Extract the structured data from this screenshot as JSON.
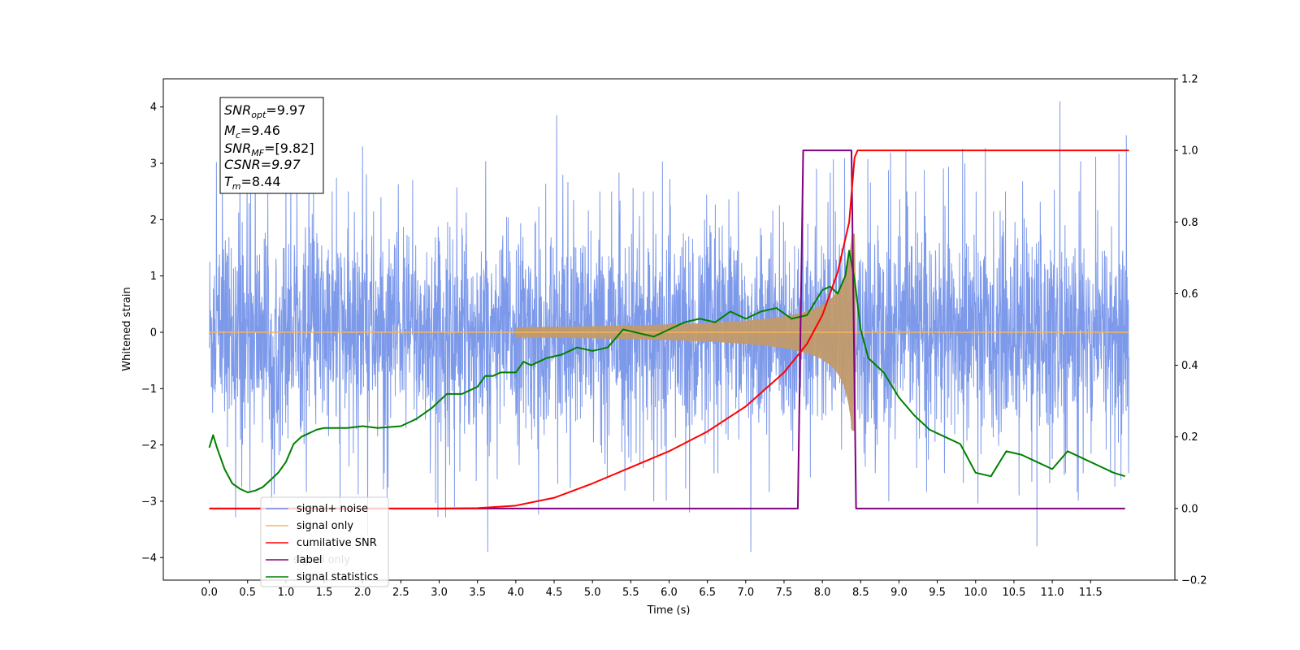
{
  "chart_data": {
    "type": "line",
    "xlabel": "Time (s)",
    "ylabel_left": "Whitened strain",
    "xlim": [
      -0.6,
      12.6
    ],
    "ylim_left": [
      -4.4,
      4.5
    ],
    "ylim_right": [
      -0.2,
      1.2
    ],
    "x_ticks": [
      "0.0",
      "0.5",
      "1.0",
      "1.5",
      "2.0",
      "2.5",
      "3.0",
      "3.5",
      "4.0",
      "4.5",
      "5.0",
      "5.5",
      "6.0",
      "6.5",
      "7.0",
      "7.5",
      "8.0",
      "8.5",
      "9.0",
      "9.5",
      "10.0",
      "10.5",
      "11.0",
      "11.5"
    ],
    "y_left_ticks": [
      "−4",
      "−3",
      "−2",
      "−1",
      "0",
      "1",
      "2",
      "3",
      "4"
    ],
    "y_right_ticks": [
      "−0.2",
      "0.0",
      "0.2",
      "0.4",
      "0.6",
      "0.8",
      "1.0",
      "1.2"
    ],
    "grid": false,
    "legend_position": "lower-left",
    "annotation": {
      "snr_opt": "=9.97",
      "mc": "=9.46",
      "snr_mf": "=[9.82]",
      "csnr": "CSNR=9.97",
      "tm": "=8.44"
    },
    "series": [
      {
        "name": "signal+ noise",
        "color": "#6f8ee8",
        "axis": "left",
        "description_stats": {
          "x_start": 0.0,
          "x_end": 12.0,
          "typical_range": [
            -2.0,
            2.0
          ],
          "max": 4.1,
          "min": -3.9
        }
      },
      {
        "name": "signal only",
        "color": "#f4b55e",
        "axis": "left",
        "chirp": {
          "x_start": 4.0,
          "merger": 8.42,
          "peak_amplitude": 1.75
        }
      },
      {
        "name": "cumilative SNR",
        "color": "#ff0000",
        "axis": "right",
        "x": [
          0.0,
          3.0,
          3.5,
          4.0,
          4.5,
          5.0,
          5.5,
          6.0,
          6.5,
          7.0,
          7.5,
          7.8,
          8.0,
          8.2,
          8.35,
          8.42,
          8.46,
          12.0
        ],
        "y": [
          0.0,
          0.0,
          0.001,
          0.008,
          0.03,
          0.07,
          0.115,
          0.16,
          0.215,
          0.285,
          0.38,
          0.46,
          0.54,
          0.66,
          0.8,
          0.98,
          1.0,
          1.0
        ]
      },
      {
        "name": "label",
        "color": "#800080",
        "axis": "right",
        "x": [
          0.0,
          7.68,
          7.75,
          8.38,
          8.44,
          11.95
        ],
        "y": [
          0.0,
          0.0,
          1.0,
          1.0,
          0.0,
          0.0
        ]
      },
      {
        "name": "signal statistics",
        "color": "#008000",
        "axis": "right",
        "x": [
          0.0,
          0.05,
          0.1,
          0.2,
          0.3,
          0.4,
          0.5,
          0.6,
          0.7,
          0.8,
          0.9,
          1.0,
          1.1,
          1.2,
          1.3,
          1.4,
          1.5,
          1.6,
          1.8,
          2.0,
          2.2,
          2.5,
          2.7,
          2.9,
          3.1,
          3.3,
          3.5,
          3.6,
          3.7,
          3.8,
          4.0,
          4.1,
          4.2,
          4.4,
          4.6,
          4.8,
          5.0,
          5.2,
          5.4,
          5.6,
          5.8,
          6.0,
          6.2,
          6.4,
          6.6,
          6.8,
          7.0,
          7.2,
          7.4,
          7.6,
          7.8,
          8.0,
          8.1,
          8.2,
          8.3,
          8.35,
          8.42,
          8.5,
          8.6,
          8.8,
          9.0,
          9.2,
          9.4,
          9.6,
          9.8,
          10.0,
          10.2,
          10.4,
          10.6,
          10.8,
          11.0,
          11.2,
          11.4,
          11.6,
          11.8,
          11.95
        ],
        "y": [
          0.17,
          0.205,
          0.17,
          0.11,
          0.07,
          0.055,
          0.045,
          0.05,
          0.06,
          0.08,
          0.1,
          0.13,
          0.18,
          0.2,
          0.21,
          0.22,
          0.225,
          0.225,
          0.225,
          0.23,
          0.225,
          0.23,
          0.25,
          0.28,
          0.32,
          0.32,
          0.34,
          0.37,
          0.37,
          0.38,
          0.38,
          0.41,
          0.4,
          0.42,
          0.43,
          0.45,
          0.44,
          0.45,
          0.5,
          0.49,
          0.48,
          0.5,
          0.52,
          0.53,
          0.52,
          0.55,
          0.53,
          0.55,
          0.56,
          0.53,
          0.54,
          0.61,
          0.62,
          0.6,
          0.65,
          0.72,
          0.64,
          0.5,
          0.42,
          0.38,
          0.31,
          0.26,
          0.22,
          0.2,
          0.18,
          0.1,
          0.09,
          0.16,
          0.15,
          0.13,
          0.11,
          0.16,
          0.14,
          0.12,
          0.1,
          0.09
        ]
      }
    ]
  },
  "legend": {
    "items": [
      "signal+ noise",
      "signal only",
      "cumilative SNR",
      "label",
      "signal statistics"
    ],
    "hidden_behind_text": "signal only"
  }
}
